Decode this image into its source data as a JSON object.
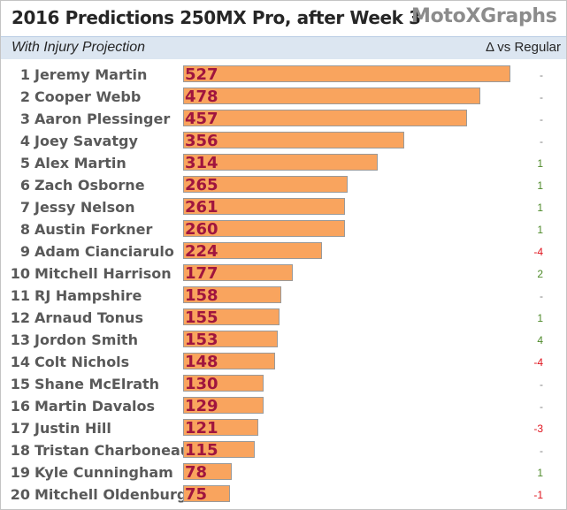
{
  "header": {
    "title": "2016 Predictions 250MX Pro, after Week 3",
    "separator": "-",
    "brand": "MotoXGraphs",
    "subtitle": "With Injury Projection",
    "delta_label": "Δ vs Regular"
  },
  "colors": {
    "bar_fill": "#f9a45e",
    "value_text": "#a0153e",
    "delta_positive": "#4e8a2a",
    "delta_negative": "#e0141e",
    "delta_neutral": "#7f7f7f",
    "subtitle_band": "#dce6f1"
  },
  "chart_data": {
    "type": "bar",
    "orientation": "horizontal",
    "title": "2016 Predictions 250MX Pro, after Week 3",
    "subtitle": "With Injury Projection",
    "xlim": [
      0,
      560
    ],
    "grid": false,
    "legend": "none",
    "categories": [
      "Jeremy Martin",
      "Cooper Webb",
      "Aaron Plessinger",
      "Joey Savatgy",
      "Alex Martin",
      "Zach Osborne",
      "Jessy Nelson",
      "Austin Forkner",
      "Adam Cianciarulo",
      "Mitchell Harrison",
      "RJ Hampshire",
      "Arnaud Tonus",
      "Jordon Smith",
      "Colt Nichols",
      "Shane McElrath",
      "Martin Davalos",
      "Justin Hill",
      "Tristan Charboneau",
      "Kyle Cunningham",
      "Mitchell Oldenburg"
    ],
    "ranks": [
      "1",
      "2",
      "3",
      "4",
      "5",
      "6",
      "7",
      "8",
      "9",
      "10",
      "11",
      "12",
      "13",
      "14",
      "15",
      "16",
      "17",
      "18",
      "19",
      "20"
    ],
    "values": [
      527,
      478,
      457,
      356,
      314,
      265,
      261,
      260,
      224,
      177,
      158,
      155,
      153,
      148,
      130,
      129,
      121,
      115,
      78,
      75
    ],
    "delta_vs_regular": [
      "-",
      "-",
      "-",
      "-",
      "1",
      "1",
      "1",
      "1",
      "-4",
      "2",
      "-",
      "1",
      "4",
      "-4",
      "-",
      "-",
      "-3",
      "-",
      "1",
      "-1"
    ]
  }
}
